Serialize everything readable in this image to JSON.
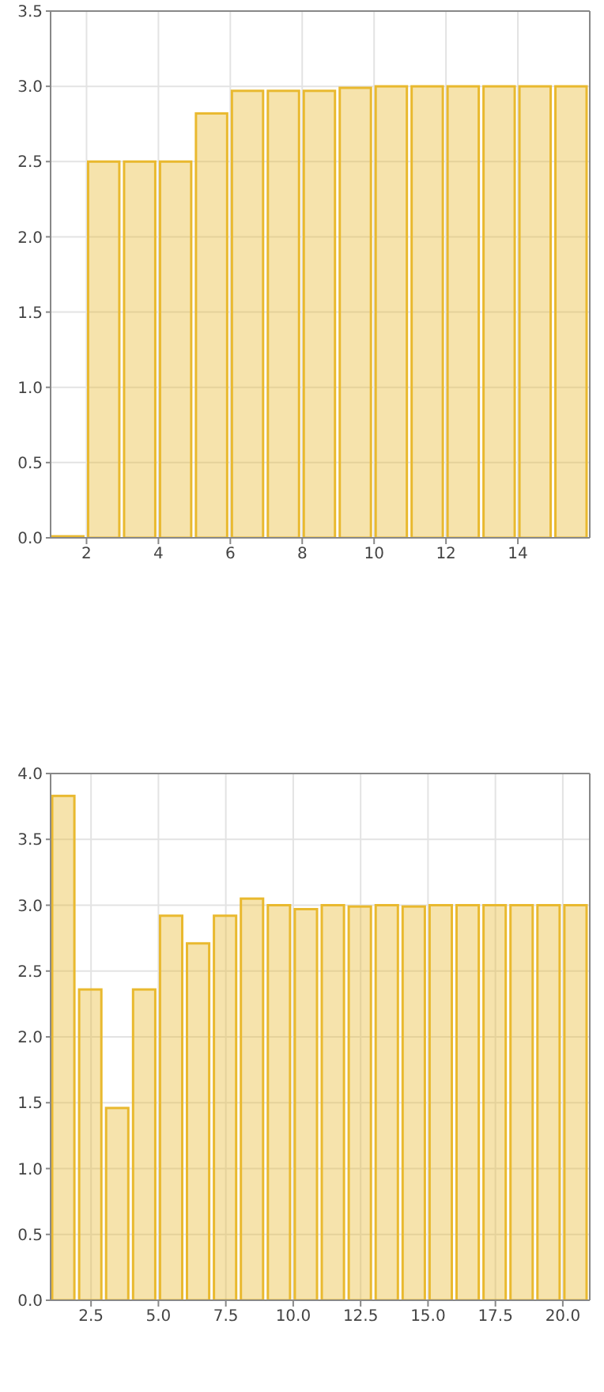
{
  "chart_data": [
    {
      "type": "histogram",
      "bins": [
        1,
        2,
        3,
        4,
        5,
        6,
        7,
        8,
        9,
        10,
        11,
        12,
        13,
        14,
        15,
        16
      ],
      "values": [
        0.01,
        2.5,
        2.5,
        2.5,
        2.82,
        2.97,
        2.97,
        2.97,
        2.99,
        3.0,
        3.0,
        3.0,
        3.0,
        3.0,
        3.0
      ],
      "color": "#e9b92f",
      "xlim": [
        1,
        16
      ],
      "xticks": [
        2,
        4,
        6,
        8,
        10,
        12,
        14
      ],
      "ylim": [
        0,
        3.5
      ],
      "yticks": [
        {
          "value": 0,
          "label": "0.0"
        },
        {
          "value": 0.5,
          "label": "0.5"
        },
        {
          "value": 1,
          "label": "1.0"
        },
        {
          "value": 1.5,
          "label": "1.5"
        },
        {
          "value": 2,
          "label": "2.0"
        },
        {
          "value": 2.5,
          "label": "2.5"
        },
        {
          "value": 3,
          "label": "3.0"
        },
        {
          "value": 3.5,
          "label": "3.5"
        }
      ],
      "grid": true
    },
    {
      "type": "histogram",
      "bins": [
        1,
        2,
        3,
        4,
        5,
        6,
        7,
        8,
        9,
        10,
        11,
        12,
        13,
        14,
        15,
        16,
        17,
        18,
        19,
        20,
        21
      ],
      "values": [
        3.83,
        2.36,
        1.46,
        2.36,
        2.92,
        2.71,
        2.92,
        3.05,
        3.0,
        2.97,
        3.0,
        2.99,
        3.0,
        2.99,
        3.0,
        3.0,
        3.0,
        3.0,
        3.0,
        3.0
      ],
      "color": "#e9b92f",
      "xlim": [
        1,
        21
      ],
      "xticks": [
        {
          "value": 2.5,
          "label": "2.5"
        },
        {
          "value": 5,
          "label": "5.0"
        },
        {
          "value": 7.5,
          "label": "7.5"
        },
        {
          "value": 10,
          "label": "10.0"
        },
        {
          "value": 12.5,
          "label": "12.5"
        },
        {
          "value": 15,
          "label": "15.0"
        },
        {
          "value": 17.5,
          "label": "17.5"
        },
        {
          "value": 20,
          "label": "20.0"
        }
      ],
      "ylim": [
        0,
        4
      ],
      "yticks": [
        {
          "value": 0,
          "label": "0.0"
        },
        {
          "value": 0.5,
          "label": "0.5"
        },
        {
          "value": 1,
          "label": "1.0"
        },
        {
          "value": 1.5,
          "label": "1.5"
        },
        {
          "value": 2,
          "label": "2.0"
        },
        {
          "value": 2.5,
          "label": "2.5"
        },
        {
          "value": 3,
          "label": "3.0"
        },
        {
          "value": 3.5,
          "label": "3.5"
        },
        {
          "value": 4,
          "label": "4.0"
        }
      ],
      "grid": true
    }
  ]
}
